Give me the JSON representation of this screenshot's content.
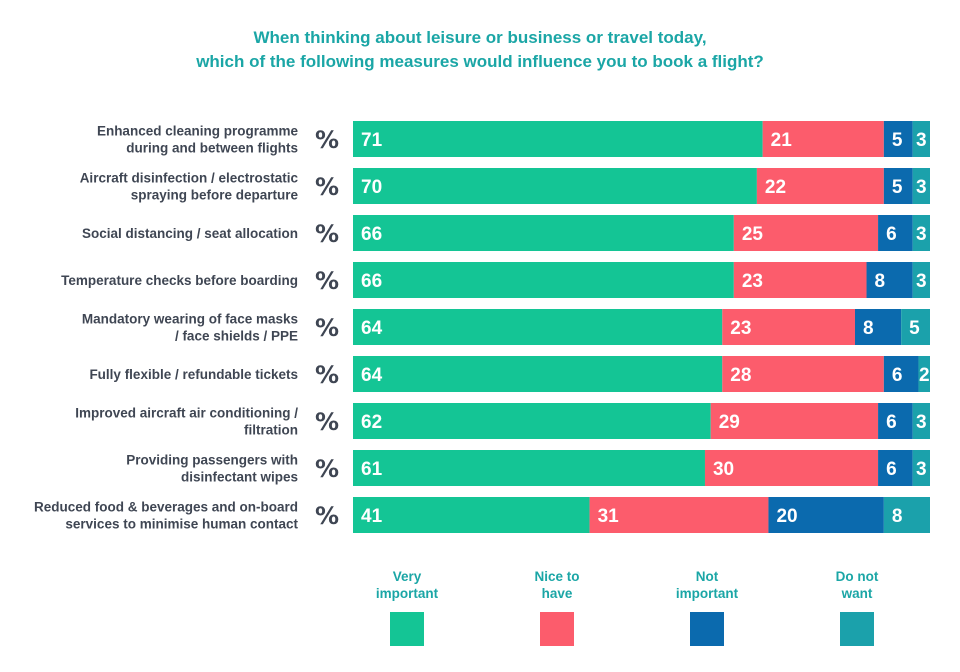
{
  "title": {
    "line1": "When thinking about leisure or business or travel today,",
    "line2": "which of the following measures would influence you to book a flight?"
  },
  "chart_data": {
    "type": "bar",
    "orientation": "horizontal",
    "stacked": true,
    "unit_symbol": "%",
    "categories": [
      [
        "Enhanced cleaning programme",
        "during and between flights"
      ],
      [
        "Aircraft disinfection / electrostatic",
        "spraying before departure"
      ],
      [
        "Social distancing / seat allocation"
      ],
      [
        "Temperature checks before boarding"
      ],
      [
        "Mandatory wearing of face masks",
        "/ face shields / PPE"
      ],
      [
        "Fully flexible / refundable tickets"
      ],
      [
        "Improved aircraft air conditioning /",
        "filtration"
      ],
      [
        "Providing passengers with",
        "disinfectant wipes"
      ],
      [
        "Reduced food & beverages and on-board",
        "services to minimise human contact"
      ]
    ],
    "series": [
      {
        "name": "Very important",
        "color": "#14c595",
        "values": [
          71,
          70,
          66,
          66,
          64,
          64,
          62,
          61,
          41
        ]
      },
      {
        "name": "Nice to have",
        "color": "#fc5c6c",
        "values": [
          21,
          22,
          25,
          23,
          23,
          28,
          29,
          30,
          31
        ]
      },
      {
        "name": "Not important",
        "color": "#0b6aae",
        "values": [
          5,
          5,
          6,
          8,
          8,
          6,
          6,
          6,
          20
        ]
      },
      {
        "name": "Do not want",
        "color": "#1ba1ab",
        "values": [
          3,
          3,
          3,
          3,
          5,
          2,
          3,
          3,
          8
        ]
      }
    ],
    "legend_placement": "bottom",
    "grid": false
  },
  "legend": [
    {
      "label": "Very\nimportant",
      "color": "#14c595"
    },
    {
      "label": "Nice to\nhave",
      "color": "#fc5c6c"
    },
    {
      "label": "Not\nimportant",
      "color": "#0b6aae"
    },
    {
      "label": "Do not\nwant",
      "color": "#1ba1ab"
    }
  ]
}
